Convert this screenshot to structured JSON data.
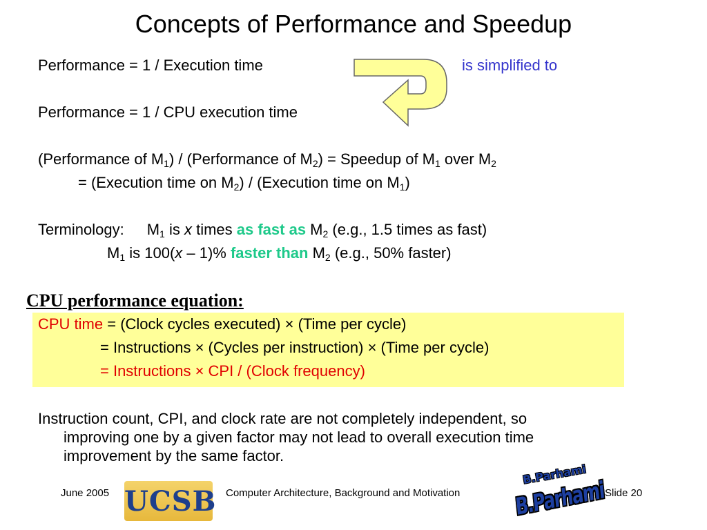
{
  "slide": {
    "title": "Concepts of Performance and Speedup",
    "perf1": "Performance = 1 / Execution time",
    "simplified": "is simplified to",
    "perf2": "Performance = 1 / CPU execution time",
    "speedup": {
      "a": "(Performance of M",
      "s1": "1",
      "b": ") / (Performance of M",
      "s2": "2",
      "c": ") = Speedup of  M",
      "s3": "1",
      "d": " over M",
      "s4": "2"
    },
    "speedup2": {
      "a": "=  (Execution time on M",
      "s1": "2",
      "b": ") / (Execution time on M",
      "s2": "1",
      "c": ")"
    },
    "term1": {
      "label": "Terminology:",
      "m": "M",
      "s1": "1",
      "is": " is ",
      "x": "x",
      "times": " times ",
      "asfast": "as fast as",
      "m2": " M",
      "s2": "2",
      "eg": " (e.g., 1.5 times as fast)"
    },
    "term2": {
      "m": "M",
      "s1": "1",
      "pre": " is 100(",
      "x": "x",
      "post": " – 1)% ",
      "faster": "faster than",
      "m2": " M",
      "s2": "2",
      "eg": " (e.g., 50% faster)"
    },
    "cpu_heading": "CPU performance equation:",
    "eq1": {
      "red": "CPU time",
      "rest": " = (Clock cycles executed) × (Time per cycle)"
    },
    "eq2": "= Instructions × (Cycles per instruction) × (Time per cycle)",
    "eq3": "= Instructions × CPI / (Clock frequency)",
    "para": {
      "l1": "Instruction count, CPI, and clock rate are not completely independent, so",
      "l2": "improving one by a given factor may not lead to overall execution time",
      "l3": "improvement by the same factor."
    }
  },
  "footer": {
    "date": "June 2005",
    "logo": "UCSB",
    "course": "Computer Architecture, Background and Motivation",
    "signature": "B.Parhami",
    "signature_top": "B.Parhami",
    "slide": "Slide 20"
  },
  "colors": {
    "blue": "#3333cc",
    "green": "#1ec98a",
    "red": "#e00000",
    "highlight": "#ffff99",
    "arrow": "#ffff99"
  }
}
